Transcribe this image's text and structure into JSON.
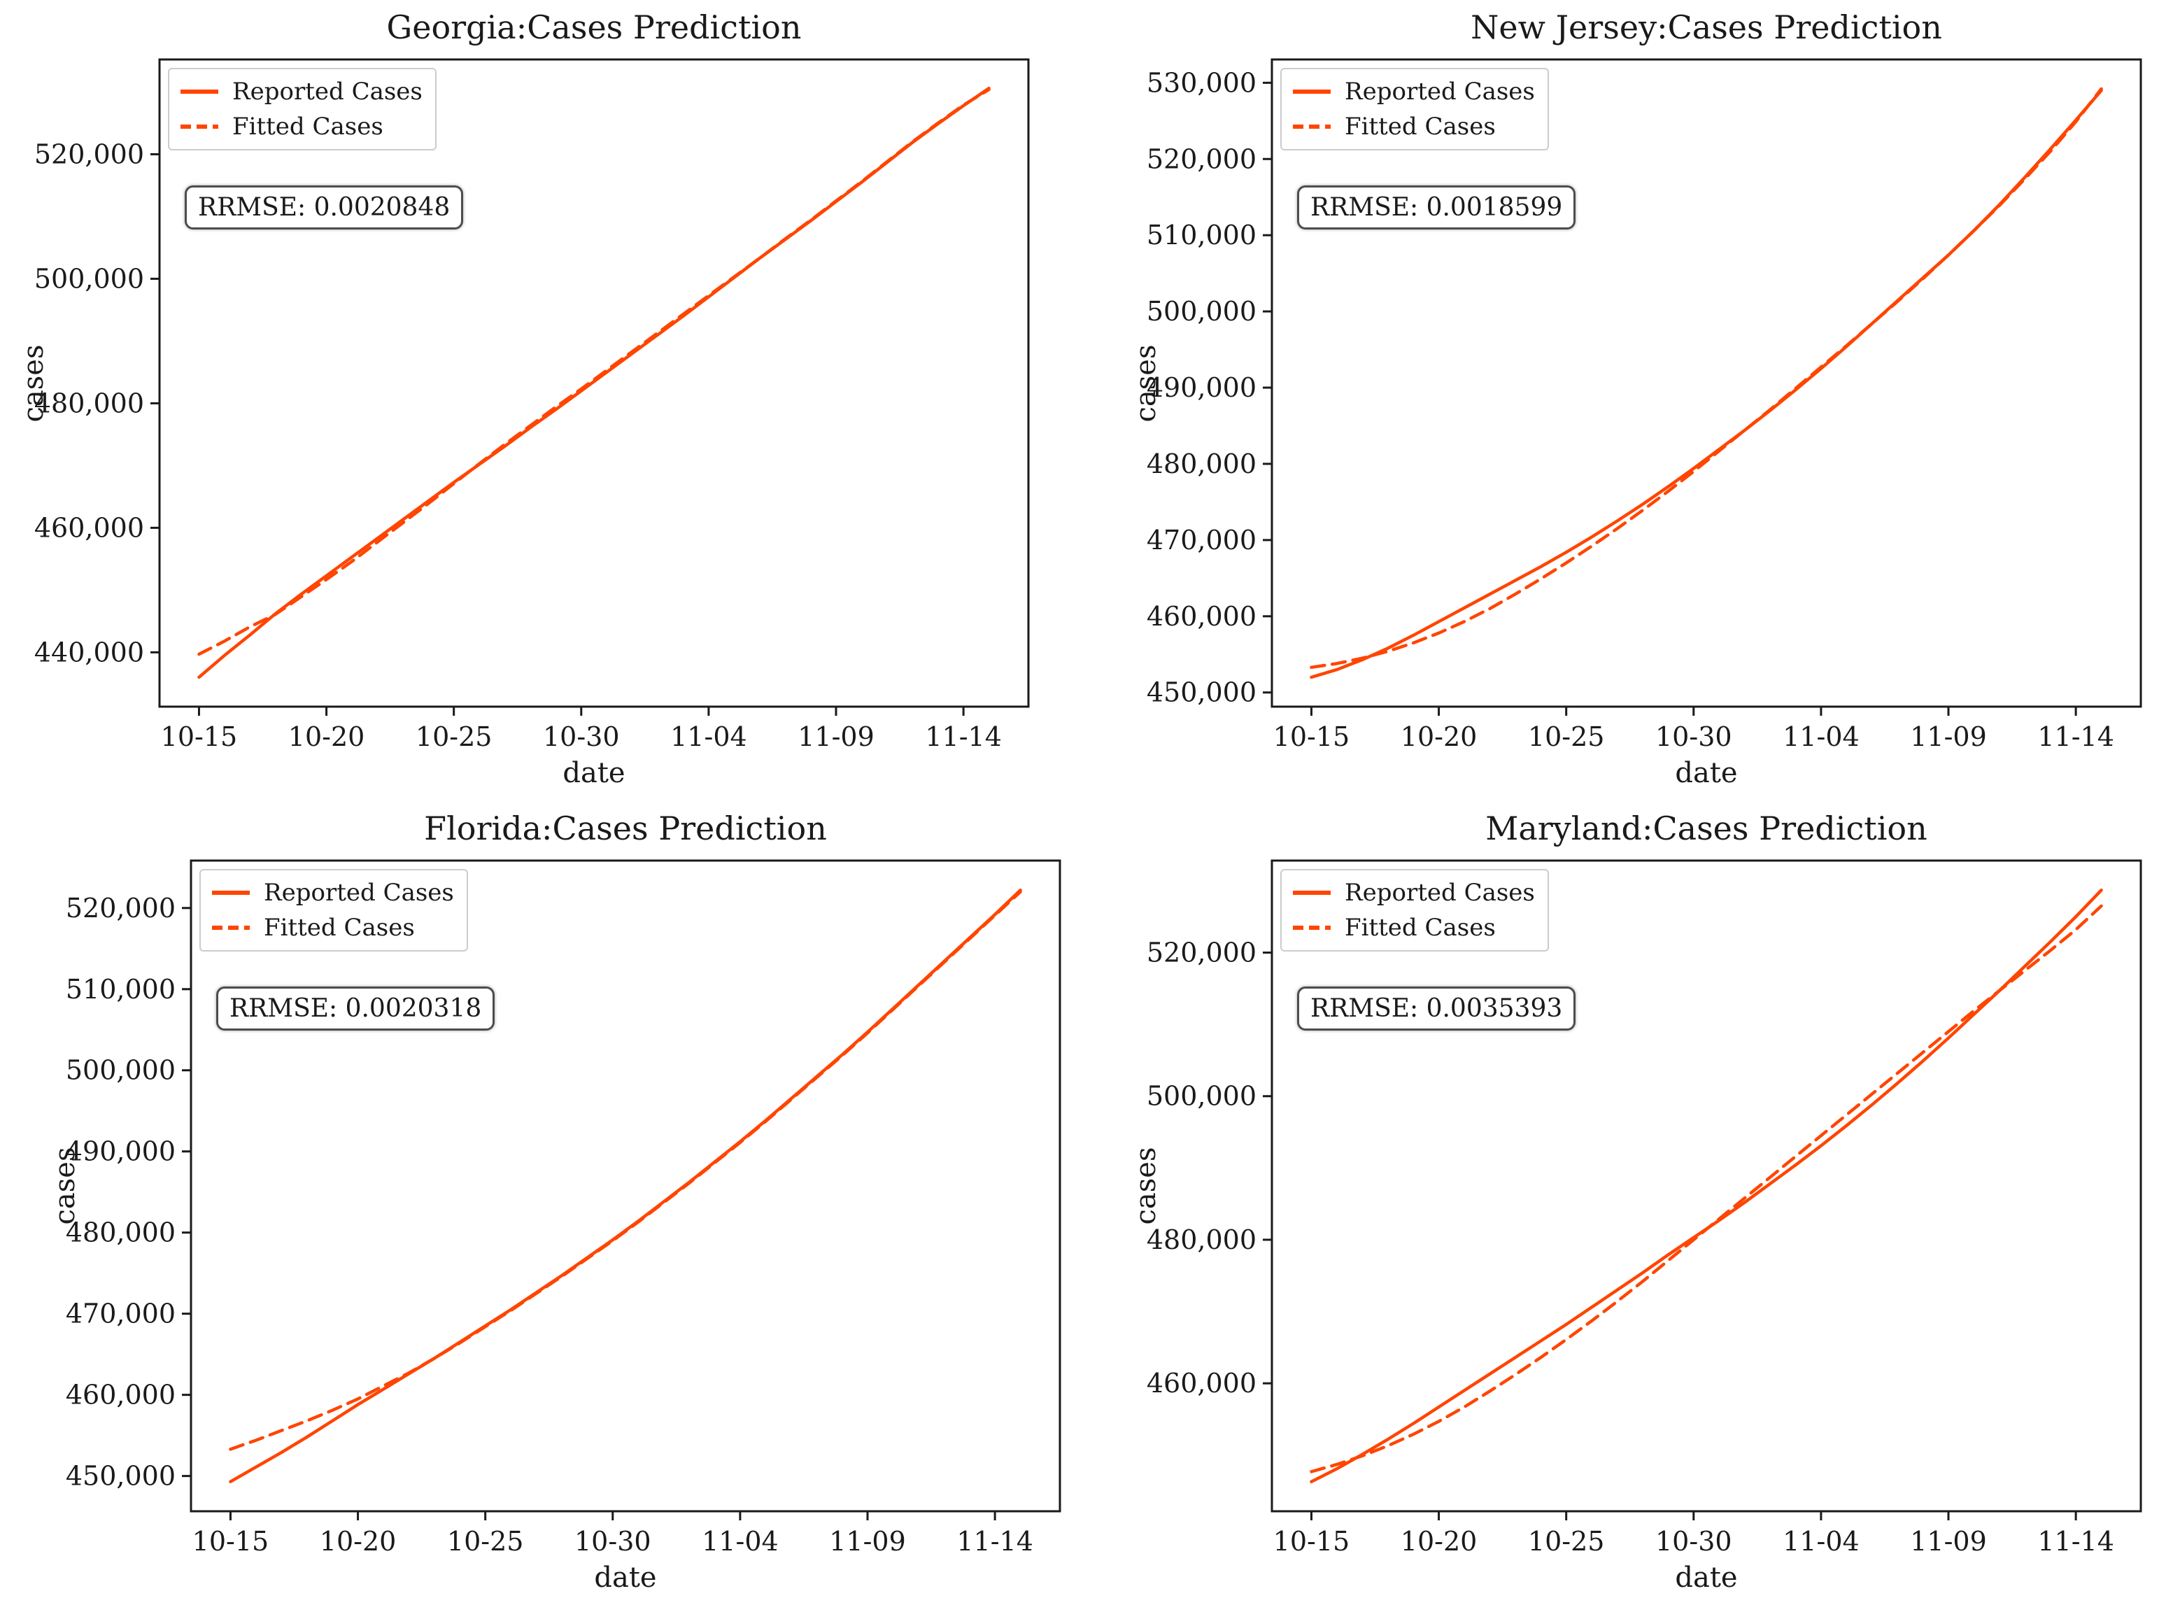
{
  "figure": {
    "background": "#ffffff",
    "line_color": "#FF4500",
    "axis_color": "#1a1a1a",
    "text_color": "#1a1a1a"
  },
  "chart_data": [
    {
      "type": "line",
      "title": "Georgia:Cases Prediction",
      "xlabel": "date",
      "ylabel": "cases",
      "rrmse_label": "RRMSE: 0.0020848",
      "legend": [
        "Reported Cases",
        "Fitted Cases"
      ],
      "legend_position": "upper-left",
      "grid": false,
      "x": [
        "10-15",
        "10-16",
        "10-17",
        "10-18",
        "10-19",
        "10-20",
        "10-21",
        "10-22",
        "10-23",
        "10-24",
        "10-25",
        "10-26",
        "10-27",
        "10-28",
        "10-29",
        "10-30",
        "10-31",
        "11-01",
        "11-02",
        "11-03",
        "11-04",
        "11-05",
        "11-06",
        "11-07",
        "11-08",
        "11-09",
        "11-10",
        "11-11",
        "11-12",
        "11-13",
        "11-14",
        "11-15"
      ],
      "x_tick_labels": [
        "10-15",
        "10-20",
        "10-25",
        "10-30",
        "11-04",
        "11-09",
        "11-14"
      ],
      "x_tick_days": [
        0,
        5,
        10,
        15,
        20,
        25,
        30
      ],
      "y_ticks": [
        440000,
        460000,
        480000,
        500000,
        520000
      ],
      "xlim": [
        -1.55,
        32.55
      ],
      "ylim": [
        431275,
        535225
      ],
      "series": [
        {
          "name": "Reported Cases",
          "style": "solid",
          "values": [
            436000,
            439500,
            442800,
            446200,
            449300,
            452300,
            455300,
            458300,
            461300,
            464300,
            467300,
            470200,
            473100,
            476100,
            479000,
            482000,
            485000,
            488000,
            491000,
            494000,
            497100,
            500200,
            503300,
            506300,
            509300,
            512400,
            515500,
            518700,
            521900,
            524900,
            527800,
            530600
          ]
        },
        {
          "name": "Fitted Cases",
          "style": "dashed",
          "values": [
            439700,
            441800,
            444100,
            446100,
            448900,
            451700,
            454600,
            457700,
            460800,
            463900,
            467100,
            470300,
            473400,
            476400,
            479400,
            482300,
            485300,
            488300,
            491300,
            494300,
            497300,
            500300,
            503300,
            506400,
            509400,
            512500,
            515600,
            518800,
            522000,
            525000,
            527900,
            530400
          ]
        }
      ]
    },
    {
      "type": "line",
      "title": "New Jersey:Cases Prediction",
      "xlabel": "date",
      "ylabel": "cases",
      "rrmse_label": "RRMSE: 0.0018599",
      "legend": [
        "Reported Cases",
        "Fitted Cases"
      ],
      "legend_position": "upper-left",
      "grid": false,
      "x": [
        "10-15",
        "10-16",
        "10-17",
        "10-18",
        "10-19",
        "10-20",
        "10-21",
        "10-22",
        "10-23",
        "10-24",
        "10-25",
        "10-26",
        "10-27",
        "10-28",
        "10-29",
        "10-30",
        "10-31",
        "11-01",
        "11-02",
        "11-03",
        "11-04",
        "11-05",
        "11-06",
        "11-07",
        "11-08",
        "11-09",
        "11-10",
        "11-11",
        "11-12",
        "11-13",
        "11-14",
        "11-15"
      ],
      "x_tick_labels": [
        "10-15",
        "10-20",
        "10-25",
        "10-30",
        "11-04",
        "11-09",
        "11-14"
      ],
      "x_tick_days": [
        0,
        5,
        10,
        15,
        20,
        25,
        30
      ],
      "y_ticks": [
        450000,
        460000,
        470000,
        480000,
        490000,
        500000,
        510000,
        520000,
        530000
      ],
      "xlim": [
        -1.55,
        32.55
      ],
      "ylim": [
        448140,
        533060
      ],
      "series": [
        {
          "name": "Reported Cases",
          "style": "solid",
          "values": [
            452000,
            453000,
            454300,
            455800,
            457500,
            459300,
            461100,
            462900,
            464700,
            466500,
            468400,
            470400,
            472500,
            474700,
            477000,
            479400,
            481900,
            484400,
            487000,
            489700,
            492500,
            495400,
            498400,
            501400,
            504400,
            507400,
            510600,
            514000,
            517600,
            521300,
            525100,
            529000
          ]
        },
        {
          "name": "Fitted Cases",
          "style": "dashed",
          "values": [
            453300,
            453800,
            454500,
            455400,
            456500,
            457800,
            459300,
            461000,
            462900,
            464900,
            467000,
            469200,
            471500,
            473900,
            476400,
            479000,
            481700,
            484400,
            487100,
            489900,
            492700,
            495500,
            498400,
            501300,
            504300,
            507400,
            510600,
            513900,
            517400,
            521000,
            524900,
            529200
          ]
        }
      ]
    },
    {
      "type": "line",
      "title": "Florida:Cases Prediction",
      "xlabel": "date",
      "ylabel": "cases",
      "rrmse_label": "RRMSE: 0.0020318",
      "legend": [
        "Reported Cases",
        "Fitted Cases"
      ],
      "legend_position": "upper-left",
      "grid": false,
      "x": [
        "10-15",
        "10-16",
        "10-17",
        "10-18",
        "10-19",
        "10-20",
        "10-21",
        "10-22",
        "10-23",
        "10-24",
        "10-25",
        "10-26",
        "10-27",
        "10-28",
        "10-29",
        "10-30",
        "10-31",
        "11-01",
        "11-02",
        "11-03",
        "11-04",
        "11-05",
        "11-06",
        "11-07",
        "11-08",
        "11-09",
        "11-10",
        "11-11",
        "11-12",
        "11-13",
        "11-14",
        "11-15"
      ],
      "x_tick_labels": [
        "10-15",
        "10-20",
        "10-25",
        "10-30",
        "11-04",
        "11-09",
        "11-14"
      ],
      "x_tick_days": [
        0,
        5,
        10,
        15,
        20,
        25,
        30
      ],
      "y_ticks": [
        450000,
        460000,
        470000,
        480000,
        490000,
        500000,
        510000,
        520000
      ],
      "xlim": [
        -1.55,
        32.55
      ],
      "ylim": [
        445655,
        525845
      ],
      "series": [
        {
          "name": "Reported Cases",
          "style": "solid",
          "values": [
            449300,
            451100,
            452900,
            454800,
            456800,
            458800,
            460700,
            462600,
            464500,
            466500,
            468500,
            470500,
            472600,
            474700,
            476900,
            479100,
            481400,
            483800,
            486200,
            488700,
            491200,
            493800,
            496500,
            499200,
            501900,
            504700,
            507600,
            510500,
            513400,
            516300,
            519200,
            522200
          ]
        },
        {
          "name": "Fitted Cases",
          "style": "dashed",
          "values": [
            453300,
            454400,
            455600,
            456800,
            458100,
            459500,
            461100,
            462700,
            464500,
            466400,
            468400,
            470400,
            472500,
            474600,
            476800,
            479000,
            481300,
            483700,
            486100,
            488600,
            491100,
            493700,
            496400,
            499100,
            501800,
            504600,
            507500,
            510400,
            513300,
            516200,
            519100,
            522000
          ]
        }
      ]
    },
    {
      "type": "line",
      "title": "Maryland:Cases Prediction",
      "xlabel": "date",
      "ylabel": "cases",
      "rrmse_label": "RRMSE: 0.0035393",
      "legend": [
        "Reported Cases",
        "Fitted Cases"
      ],
      "legend_position": "upper-left",
      "grid": false,
      "x": [
        "10-15",
        "10-16",
        "10-17",
        "10-18",
        "10-19",
        "10-20",
        "10-21",
        "10-22",
        "10-23",
        "10-24",
        "10-25",
        "10-26",
        "10-27",
        "10-28",
        "10-29",
        "10-30",
        "10-31",
        "11-01",
        "11-02",
        "11-03",
        "11-04",
        "11-05",
        "11-06",
        "11-07",
        "11-08",
        "11-09",
        "11-10",
        "11-11",
        "11-12",
        "11-13",
        "11-14",
        "11-15"
      ],
      "x_tick_labels": [
        "10-15",
        "10-20",
        "10-25",
        "10-30",
        "11-04",
        "11-09",
        "11-14"
      ],
      "x_tick_days": [
        0,
        5,
        10,
        15,
        20,
        25,
        30
      ],
      "y_ticks": [
        460000,
        480000,
        500000,
        520000
      ],
      "xlim": [
        -1.55,
        32.55
      ],
      "ylim": [
        442180,
        532820
      ],
      "series": [
        {
          "name": "Reported Cases",
          "style": "solid",
          "values": [
            446300,
            448100,
            450100,
            452200,
            454400,
            456700,
            459000,
            461300,
            463600,
            465900,
            468200,
            470600,
            473000,
            475400,
            477900,
            480300,
            482700,
            485200,
            487800,
            490400,
            493100,
            495900,
            498800,
            501800,
            504900,
            508100,
            511400,
            514700,
            518100,
            521500,
            525000,
            528700
          ]
        },
        {
          "name": "Fitted Cases",
          "style": "dashed",
          "values": [
            447700,
            448700,
            449900,
            451300,
            452900,
            454700,
            456700,
            458900,
            461200,
            463600,
            466100,
            468700,
            471400,
            474200,
            477100,
            480000,
            482900,
            485800,
            488700,
            491600,
            494500,
            497400,
            500300,
            503200,
            506100,
            509000,
            511900,
            514700,
            517500,
            520300,
            523200,
            526500
          ]
        }
      ]
    }
  ]
}
